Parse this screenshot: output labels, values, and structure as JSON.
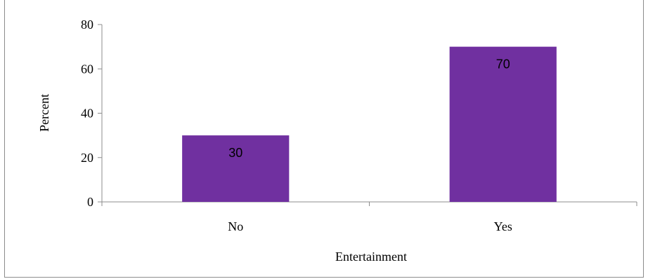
{
  "chart_data": {
    "type": "bar",
    "categories": [
      "No",
      "Yes"
    ],
    "values": [
      30,
      70
    ],
    "data_labels": [
      "30",
      "70"
    ],
    "title": "",
    "xlabel": "Entertainment",
    "ylabel": "Percent",
    "ylim": [
      0,
      80
    ],
    "yticks": [
      0,
      20,
      40,
      60,
      80
    ],
    "grid": false,
    "legend": "none",
    "bar_color": "#7030a0"
  }
}
